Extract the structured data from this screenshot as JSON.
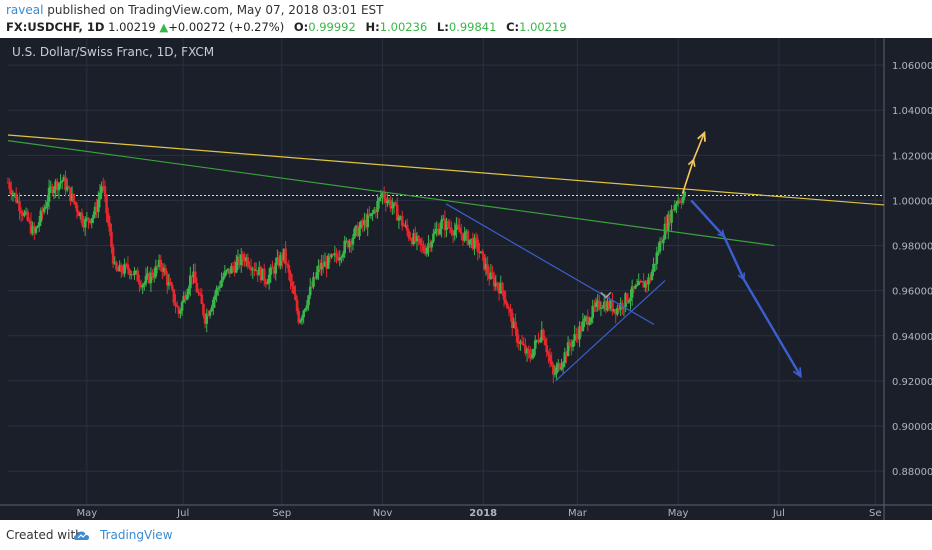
{
  "header": {
    "author": "raveal",
    "published_text": " published on TradingView.com, May 07, 2018 03:01 EST",
    "symbol": "FX:USDCHF, 1D",
    "last": "1.00219",
    "change": "+0.00272 (+0.27%)",
    "open_label": "O:",
    "open": "0.99992",
    "high_label": "H:",
    "high": "1.00236",
    "low_label": "L:",
    "low": "0.99841",
    "close_label": "C:",
    "close": "1.00219"
  },
  "footer": {
    "created_with": "Created with",
    "brand": "TradingView"
  },
  "colors": {
    "background": "#1a1f2a",
    "up": "#3ab54a",
    "down": "#e8262d",
    "trend_yellow": "#e0c341",
    "trend_green": "#3aa23a",
    "trend_blue": "#3b5fd0",
    "arrow_up": "#f4c85a"
  },
  "chart_data": {
    "type": "candlestick",
    "title": "U.S. Dollar/Swiss Franc, 1D, FXCM",
    "x_ticks": [
      "May",
      "Jul",
      "Sep",
      "Nov",
      "2018",
      "Mar",
      "May",
      "Jul",
      "Se"
    ],
    "y_ticks": [
      "1.06000",
      "1.04000",
      "1.02000",
      "1.00000",
      "0.98000",
      "0.96000",
      "0.94000",
      "0.92000",
      "0.90000",
      "0.88000"
    ],
    "ylim": [
      0.865,
      1.072
    ],
    "current_price_line": 1.0022,
    "price_path": [
      {
        "t": 0,
        "v": 1.008
      },
      {
        "t": 1.2,
        "v": 0.985
      },
      {
        "t": 2,
        "v": 1.006
      },
      {
        "t": 2.5,
        "v": 1.009
      },
      {
        "t": 3.5,
        "v": 0.99
      },
      {
        "t": 4,
        "v": 0.995
      },
      {
        "t": 4.3,
        "v": 1.008
      },
      {
        "t": 4.9,
        "v": 0.968
      },
      {
        "t": 5.5,
        "v": 0.97
      },
      {
        "t": 6.2,
        "v": 0.963
      },
      {
        "t": 7,
        "v": 0.972
      },
      {
        "t": 7.8,
        "v": 0.95
      },
      {
        "t": 8.4,
        "v": 0.968
      },
      {
        "t": 9,
        "v": 0.948
      },
      {
        "t": 9.8,
        "v": 0.966
      },
      {
        "t": 10.8,
        "v": 0.975
      },
      {
        "t": 11.8,
        "v": 0.965
      },
      {
        "t": 12.6,
        "v": 0.976
      },
      {
        "t": 13.3,
        "v": 0.947
      },
      {
        "t": 14.2,
        "v": 0.97
      },
      {
        "t": 15,
        "v": 0.975
      },
      {
        "t": 15.8,
        "v": 0.985
      },
      {
        "t": 16.6,
        "v": 0.993
      },
      {
        "t": 17.1,
        "v": 1.003
      },
      {
        "t": 17.6,
        "v": 0.997
      },
      {
        "t": 18.3,
        "v": 0.985
      },
      {
        "t": 19,
        "v": 0.978
      },
      {
        "t": 19.8,
        "v": 0.99
      },
      {
        "t": 20.6,
        "v": 0.986
      },
      {
        "t": 21.4,
        "v": 0.98
      },
      {
        "t": 22,
        "v": 0.966
      },
      {
        "t": 22.6,
        "v": 0.96
      },
      {
        "t": 23.2,
        "v": 0.94
      },
      {
        "t": 23.8,
        "v": 0.93
      },
      {
        "t": 24.4,
        "v": 0.943
      },
      {
        "t": 24.9,
        "v": 0.922
      },
      {
        "t": 25.6,
        "v": 0.935
      },
      {
        "t": 26.4,
        "v": 0.947
      },
      {
        "t": 27.1,
        "v": 0.955
      },
      {
        "t": 27.8,
        "v": 0.952
      },
      {
        "t": 28.6,
        "v": 0.96
      },
      {
        "t": 29.3,
        "v": 0.965
      },
      {
        "t": 29.9,
        "v": 0.985
      },
      {
        "t": 30.5,
        "v": 1.0
      },
      {
        "t": 30.9,
        "v": 1.002
      }
    ],
    "annotations": [
      {
        "type": "trendline",
        "color": "yellow",
        "points": [
          [
            0,
            1.029
          ],
          [
            40,
            0.998
          ]
        ]
      },
      {
        "type": "trendline",
        "color": "green",
        "points": [
          [
            0,
            1.0265
          ],
          [
            35,
            0.98
          ]
        ]
      },
      {
        "type": "trendline",
        "color": "blue",
        "points": [
          [
            20,
            0.9985
          ],
          [
            29.5,
            0.945
          ]
        ]
      },
      {
        "type": "trendline",
        "color": "blue",
        "points": [
          [
            25,
            0.92
          ],
          [
            30,
            0.9645
          ]
        ]
      },
      {
        "type": "arrow",
        "color": "orange",
        "points": [
          [
            30.8,
            1.003
          ],
          [
            31.3,
            1.018
          ],
          [
            31.8,
            1.03
          ]
        ]
      },
      {
        "type": "arrow",
        "color": "blue",
        "points": [
          [
            31.2,
            1.0
          ],
          [
            32.7,
            0.984
          ],
          [
            33.6,
            0.965
          ],
          [
            36.2,
            0.922
          ]
        ]
      }
    ]
  }
}
